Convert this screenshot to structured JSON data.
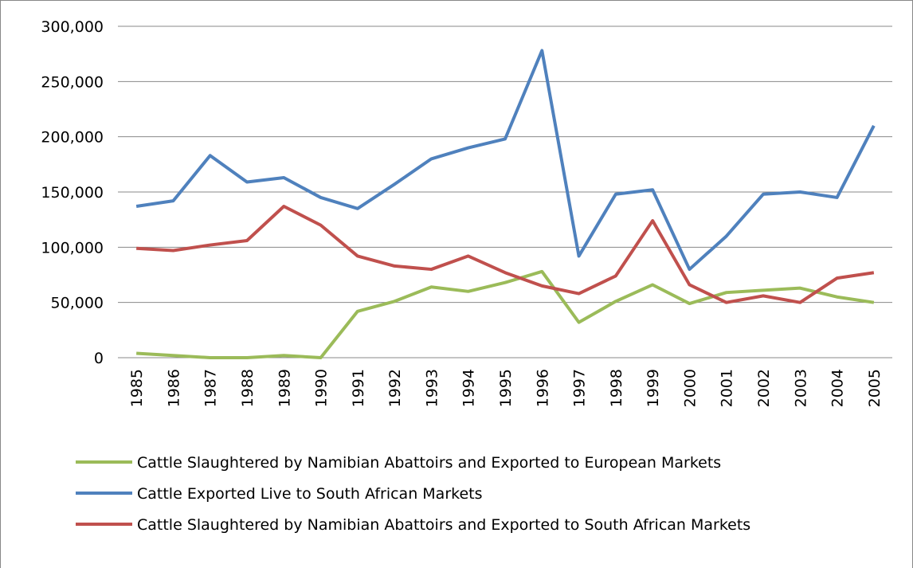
{
  "chart_data": {
    "type": "line",
    "categories": [
      "1985",
      "1986",
      "1987",
      "1988",
      "1989",
      "1990",
      "1991",
      "1992",
      "1993",
      "1994",
      "1995",
      "1996",
      "1997",
      "1998",
      "1999",
      "2000",
      "2001",
      "2002",
      "2003",
      "2004",
      "2005"
    ],
    "series": [
      {
        "name": "Cattle Slaughtered by Namibian Abattoirs and Exported to European Markets",
        "color": "#9bbb59",
        "values": [
          4000,
          2000,
          0,
          0,
          2000,
          0,
          42000,
          51000,
          64000,
          60000,
          68000,
          78000,
          32000,
          51000,
          66000,
          49000,
          59000,
          61000,
          63000,
          55000,
          50000
        ]
      },
      {
        "name": "Cattle Exported Live to South African Markets",
        "color": "#4f81bd",
        "values": [
          137000,
          142000,
          183000,
          159000,
          163000,
          145000,
          135000,
          157000,
          180000,
          190000,
          198000,
          278000,
          92000,
          148000,
          152000,
          80000,
          110000,
          148000,
          150000,
          145000,
          210000
        ]
      },
      {
        "name": "Cattle Slaughtered by Namibian Abattoirs and Exported to South African Markets",
        "color": "#c0504d",
        "values": [
          99000,
          97000,
          102000,
          106000,
          137000,
          120000,
          92000,
          83000,
          80000,
          92000,
          77000,
          65000,
          58000,
          74000,
          124000,
          66000,
          50000,
          56000,
          50000,
          72000,
          77000
        ]
      }
    ],
    "ylim": [
      0,
      300000
    ],
    "yticks": [
      0,
      {
        "value": 50000,
        "label": "50,000"
      },
      {
        "value": 100000,
        "label": "100,000"
      },
      {
        "value": 150000,
        "label": "150,000"
      },
      {
        "value": 200000,
        "label": "200,000"
      },
      {
        "value": 250000,
        "label": "250,000"
      },
      {
        "value": 300000,
        "label": "300,000"
      }
    ],
    "grid": true
  }
}
